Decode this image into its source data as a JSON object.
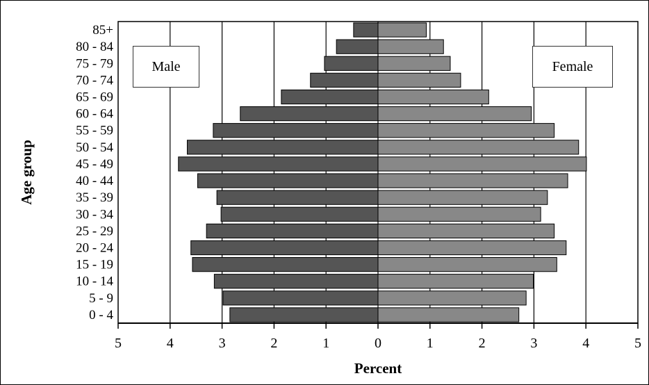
{
  "chart_data": {
    "type": "bar",
    "orientation": "horizontal",
    "layout": "population-pyramid",
    "categories": [
      "0 - 4",
      "5 - 9",
      "10 - 14",
      "15 - 19",
      "20 - 24",
      "25 - 29",
      "30 - 34",
      "35 - 39",
      "40 - 44",
      "45 - 49",
      "50 - 54",
      "55 - 59",
      "60 - 64",
      "65 - 69",
      "70 - 74",
      "75 - 79",
      "80 - 84",
      "85+"
    ],
    "series": [
      {
        "name": "Male",
        "color": "#555555",
        "values": [
          2.85,
          2.98,
          3.15,
          3.57,
          3.6,
          3.3,
          3.02,
          3.1,
          3.47,
          3.84,
          3.67,
          3.17,
          2.65,
          1.86,
          1.3,
          1.03,
          0.8,
          0.47
        ]
      },
      {
        "name": "Female",
        "color": "#888888",
        "values": [
          2.71,
          2.85,
          2.99,
          3.44,
          3.62,
          3.39,
          3.13,
          3.26,
          3.65,
          4.01,
          3.86,
          3.39,
          2.95,
          2.13,
          1.59,
          1.39,
          1.26,
          0.93
        ]
      }
    ],
    "xlabel": "Percent",
    "ylabel": "Age group",
    "xticks": [
      "5",
      "4",
      "3",
      "2",
      "1",
      "0",
      "1",
      "2",
      "3",
      "4",
      "5"
    ],
    "xlim": [
      -5,
      5
    ],
    "grid": true,
    "legend": [
      "Male",
      "Female"
    ],
    "legend_placement": "top-left and top-right"
  }
}
